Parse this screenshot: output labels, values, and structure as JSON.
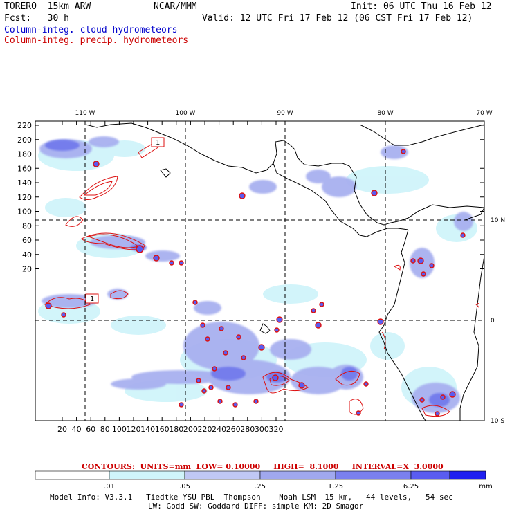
{
  "header": {
    "model": "TORERO  15km ARW",
    "org": "NCAR/MMM",
    "init": "Init: 06 UTC Thu 16 Feb 12",
    "fcst": "Fcst:   30 h",
    "valid": "Valid: 12 UTC Fri 17 Feb 12 (06 CST Fri 17 Feb 12)",
    "legend_blue": "Column-integ. cloud hydrometeors",
    "legend_red": "Column-integ. precip. hydrometeors"
  },
  "axes": {
    "top_lon": [
      "110 W",
      "100 W",
      "90 W",
      "80 W",
      "70 W"
    ],
    "right_lat": [
      "10 N",
      "0",
      "10 S"
    ],
    "y_ticks": [
      "220",
      "200",
      "180",
      "160",
      "140",
      "120",
      "100",
      "80",
      "60",
      "40",
      "20"
    ],
    "x_ticks": [
      "20",
      "40",
      "60",
      "80",
      "100",
      "120",
      "140",
      "160",
      "180",
      "200",
      "220",
      "240",
      "260",
      "280",
      "300",
      "320"
    ]
  },
  "contour_label": "CONTOURS:  UNITS=mm  LOW= 0.10000     HIGH=  8.1000     INTERVAL=X  3.0000",
  "colorbar": {
    "labels": [
      ".01",
      ".05",
      ".25",
      "1.25",
      "6.25"
    ],
    "unit": "mm",
    "colors": [
      "#ffffff",
      "#d0f4fa",
      "#c0c8f4",
      "#a0a8ee",
      "#7a80ee",
      "#5a5cf0",
      "#2020f0"
    ]
  },
  "model_info": {
    "line1": "Model Info: V3.3.1   Tiedtke YSU PBL  Thompson    Noah LSM  15 km,   44 levels,   54 sec",
    "line2": "LW: Godd SW: Goddard DIFF: simple KM: 2D Smagor"
  },
  "map_labels": {
    "box1": "1",
    "box2": "1"
  }
}
